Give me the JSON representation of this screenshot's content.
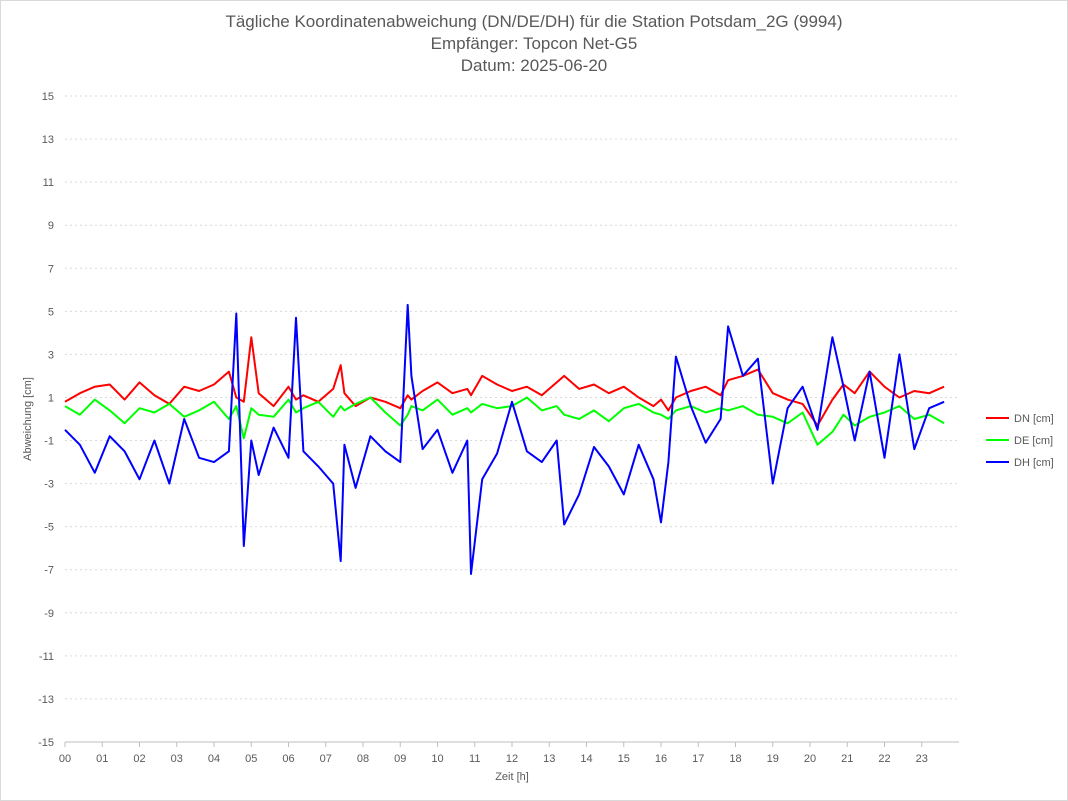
{
  "chart_data": {
    "type": "line",
    "title": "Tägliche Koordinatenabweichung (DN/DE/DH) für die Station Potsdam_2G (9994)",
    "subtitle_1": "Empfänger: Topcon Net-G5",
    "subtitle_2": "Datum: 2025-06-20",
    "xlabel": "Zeit [h]",
    "ylabel": "Abweichung [cm]",
    "xlim": [
      0,
      24
    ],
    "ylim": [
      -15,
      15
    ],
    "x_tick_labels": [
      "00",
      "01",
      "02",
      "03",
      "04",
      "05",
      "06",
      "07",
      "08",
      "09",
      "10",
      "11",
      "12",
      "13",
      "14",
      "15",
      "16",
      "17",
      "18",
      "19",
      "20",
      "21",
      "22",
      "23"
    ],
    "y_ticks": [
      15,
      13,
      11,
      9,
      7,
      5,
      3,
      1,
      -1,
      -3,
      -5,
      -7,
      -9,
      -11,
      -13,
      -15
    ],
    "grid": true,
    "legend": "right",
    "x": [
      0,
      0.4,
      0.8,
      1.2,
      1.6,
      2,
      2.4,
      2.8,
      3.2,
      3.6,
      4,
      4.4,
      4.6,
      4.8,
      5,
      5.2,
      5.6,
      6,
      6.2,
      6.4,
      6.8,
      7.2,
      7.4,
      7.5,
      7.8,
      8.2,
      8.6,
      9,
      9.2,
      9.3,
      9.6,
      10,
      10.4,
      10.8,
      10.9,
      11.2,
      11.6,
      12,
      12.4,
      12.8,
      13.2,
      13.4,
      13.8,
      14.2,
      14.6,
      15,
      15.4,
      15.8,
      16,
      16.2,
      16.4,
      16.8,
      17.2,
      17.6,
      17.8,
      18.2,
      18.6,
      19,
      19.4,
      19.8,
      20.2,
      20.6,
      20.9,
      21.2,
      21.6,
      22,
      22.4,
      22.8,
      23.2,
      23.6
    ],
    "series": [
      {
        "name": "DN [cm]",
        "color": "#ff0000",
        "values": [
          0.8,
          1.2,
          1.5,
          1.6,
          0.9,
          1.7,
          1.1,
          0.7,
          1.5,
          1.3,
          1.6,
          2.2,
          1.0,
          0.8,
          3.8,
          1.2,
          0.6,
          1.5,
          0.9,
          1.1,
          0.8,
          1.4,
          2.5,
          1.2,
          0.6,
          1.0,
          0.8,
          0.5,
          1.1,
          0.9,
          1.3,
          1.7,
          1.2,
          1.4,
          1.1,
          2.0,
          1.6,
          1.3,
          1.5,
          1.1,
          1.7,
          2.0,
          1.4,
          1.6,
          1.2,
          1.5,
          1.0,
          0.6,
          0.9,
          0.4,
          1.0,
          1.3,
          1.5,
          1.1,
          1.8,
          2.0,
          2.3,
          1.2,
          0.9,
          0.7,
          -0.3,
          0.9,
          1.6,
          1.2,
          2.2,
          1.5,
          1.0,
          1.3,
          1.2,
          1.5
        ]
      },
      {
        "name": "DE [cm]",
        "color": "#00ff00",
        "values": [
          0.6,
          0.2,
          0.9,
          0.4,
          -0.2,
          0.5,
          0.3,
          0.7,
          0.1,
          0.4,
          0.8,
          0.0,
          0.6,
          -0.9,
          0.5,
          0.2,
          0.1,
          0.9,
          0.3,
          0.5,
          0.8,
          0.1,
          0.6,
          0.4,
          0.7,
          1.0,
          0.3,
          -0.3,
          0.2,
          0.6,
          0.4,
          0.9,
          0.2,
          0.5,
          0.3,
          0.7,
          0.5,
          0.6,
          1.0,
          0.4,
          0.6,
          0.2,
          0.0,
          0.4,
          -0.1,
          0.5,
          0.7,
          0.3,
          0.2,
          0.0,
          0.4,
          0.6,
          0.3,
          0.5,
          0.4,
          0.6,
          0.2,
          0.1,
          -0.2,
          0.3,
          -1.2,
          -0.6,
          0.2,
          -0.3,
          0.1,
          0.3,
          0.6,
          0.0,
          0.2,
          -0.2
        ]
      },
      {
        "name": "DH [cm]",
        "color": "#0000ff",
        "values": [
          -0.5,
          -1.2,
          -2.5,
          -0.8,
          -1.5,
          -2.8,
          -1.0,
          -3.0,
          0.0,
          -1.8,
          -2.0,
          -1.5,
          4.9,
          -5.9,
          -1.0,
          -2.6,
          -0.4,
          -1.8,
          4.7,
          -1.5,
          -2.2,
          -3.0,
          -6.6,
          -1.2,
          -3.2,
          -0.8,
          -1.5,
          -2.0,
          5.3,
          2.0,
          -1.4,
          -0.5,
          -2.5,
          -1.0,
          -7.2,
          -2.8,
          -1.6,
          0.8,
          -1.5,
          -2.0,
          -1.0,
          -4.9,
          -3.5,
          -1.3,
          -2.2,
          -3.5,
          -1.2,
          -2.8,
          -4.8,
          -2.0,
          2.9,
          0.6,
          -1.1,
          0.0,
          4.3,
          2.0,
          2.8,
          -3.0,
          0.5,
          1.5,
          -0.5,
          3.8,
          1.5,
          -1.0,
          2.2,
          -1.8,
          3.0,
          -1.4,
          0.5,
          0.8
        ]
      }
    ]
  }
}
